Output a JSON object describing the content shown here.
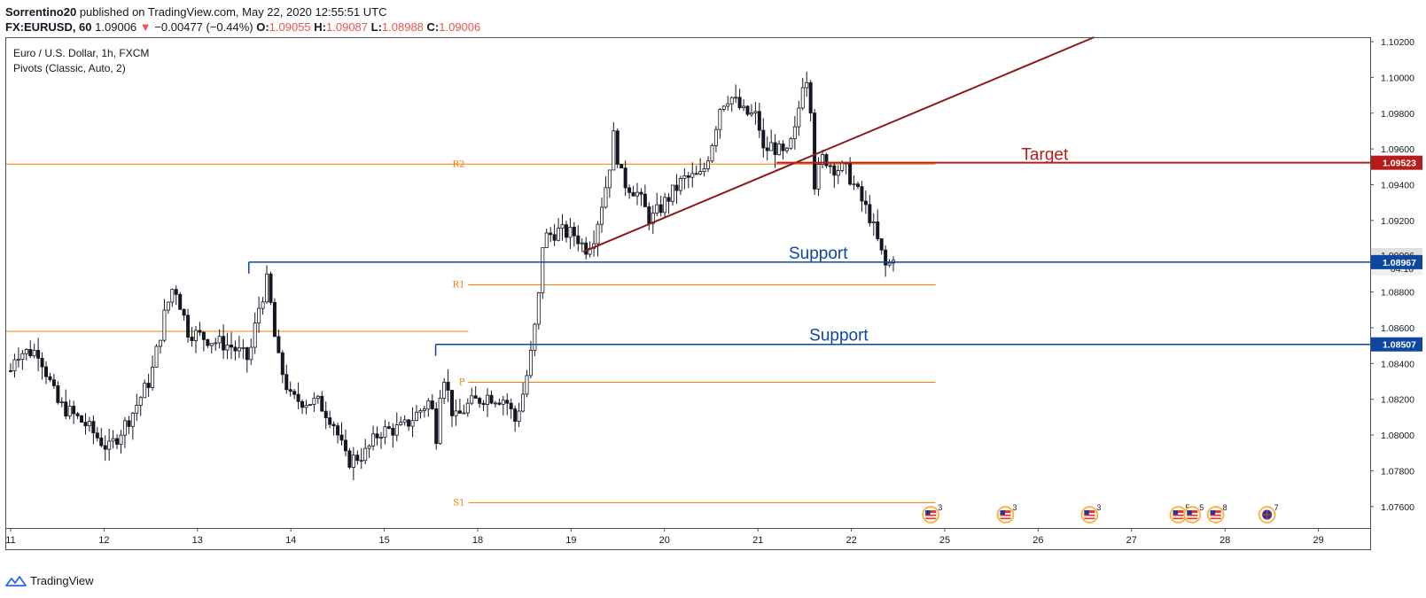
{
  "header": {
    "author": "Sorrentino20",
    "published": "published on TradingView.com, May 22, 2020 12:55:51 UTC",
    "symbol": "FX:EURUSD, 60",
    "last": "1.09006",
    "change_arrow": "▼",
    "change": "−0.00477 (−0.44%)",
    "o_label": "O:",
    "o_val": "1.09055",
    "h_label": "H:",
    "h_val": "1.09087",
    "l_label": "L:",
    "l_val": "1.08988",
    "c_label": "C:",
    "c_val": "1.09006"
  },
  "legend": {
    "title": "Euro / U.S. Dollar, 1h, FXCM",
    "indicator": "Pivots (Classic, Auto, 2)"
  },
  "footer": {
    "brand": "TradingView",
    "logo_icon": "tradingview-logo-icon"
  },
  "colors": {
    "up": "#ffffff",
    "down": "#131722",
    "pivot": "#f57c00",
    "support": "#0d47a1",
    "target": "#b71c1c",
    "trend": "#8b1a1a"
  },
  "chart_data": {
    "type": "candlestick",
    "ylim": [
      1.0748,
      1.1022
    ],
    "y_ticks": [
      "1.10200",
      "1.10000",
      "1.09800",
      "1.09600",
      "1.09400",
      "1.09200",
      "1.09000",
      "1.08800",
      "1.08600",
      "1.08400",
      "1.08200",
      "1.08000",
      "1.07800",
      "1.07600"
    ],
    "x_ticks": [
      {
        "label": "11",
        "day": 0
      },
      {
        "label": "12",
        "day": 1
      },
      {
        "label": "13",
        "day": 2
      },
      {
        "label": "14",
        "day": 3
      },
      {
        "label": "15",
        "day": 4
      },
      {
        "label": "18",
        "day": 5
      },
      {
        "label": "19",
        "day": 6
      },
      {
        "label": "20",
        "day": 7
      },
      {
        "label": "21",
        "day": 8
      },
      {
        "label": "22",
        "day": 9
      },
      {
        "label": "25",
        "day": 10
      },
      {
        "label": "26",
        "day": 11
      },
      {
        "label": "27",
        "day": 12
      },
      {
        "label": "28",
        "day": 13
      },
      {
        "label": "29",
        "day": 14
      }
    ],
    "anchors": [
      [
        0.0,
        1.0836
      ],
      [
        0.05,
        1.0846
      ],
      [
        0.3,
        1.0847
      ],
      [
        0.5,
        1.0818
      ],
      [
        0.8,
        1.0806
      ],
      [
        1.05,
        1.0792
      ],
      [
        1.3,
        1.0812
      ],
      [
        1.5,
        1.0832
      ],
      [
        1.65,
        1.0868
      ],
      [
        1.75,
        1.0885
      ],
      [
        1.9,
        1.0858
      ],
      [
        2.2,
        1.0852
      ],
      [
        2.35,
        1.085
      ],
      [
        2.55,
        1.0842
      ],
      [
        2.65,
        1.087
      ],
      [
        2.75,
        1.0887
      ],
      [
        2.85,
        1.0845
      ],
      [
        3.0,
        1.082
      ],
      [
        3.3,
        1.0818
      ],
      [
        3.45,
        1.0808
      ],
      [
        3.6,
        1.0785
      ],
      [
        3.8,
        1.079
      ],
      [
        3.95,
        1.0802
      ],
      [
        4.2,
        1.0804
      ],
      [
        4.35,
        1.0812
      ],
      [
        4.5,
        1.082
      ],
      [
        4.55,
        1.0796
      ],
      [
        4.62,
        1.0838
      ],
      [
        4.75,
        1.0808
      ],
      [
        4.9,
        1.0817
      ],
      [
        5.1,
        1.0822
      ],
      [
        5.3,
        1.082
      ],
      [
        5.4,
        1.0808
      ],
      [
        5.5,
        1.0826
      ],
      [
        5.58,
        1.0848
      ],
      [
        5.65,
        1.0875
      ],
      [
        5.7,
        1.091
      ],
      [
        5.85,
        1.0914
      ],
      [
        6.05,
        1.0912
      ],
      [
        6.15,
        1.0904
      ],
      [
        6.25,
        1.0912
      ],
      [
        6.4,
        1.0946
      ],
      [
        6.45,
        1.0968
      ],
      [
        6.55,
        1.0942
      ],
      [
        6.7,
        1.0936
      ],
      [
        6.85,
        1.092
      ],
      [
        7.0,
        1.093
      ],
      [
        7.2,
        1.0943
      ],
      [
        7.4,
        1.0945
      ],
      [
        7.5,
        1.0962
      ],
      [
        7.6,
        1.0985
      ],
      [
        7.7,
        1.099
      ],
      [
        7.85,
        1.098
      ],
      [
        8.0,
        1.0978
      ],
      [
        8.05,
        1.0958
      ],
      [
        8.15,
        1.0962
      ],
      [
        8.3,
        1.0955
      ],
      [
        8.4,
        1.097
      ],
      [
        8.48,
        1.0998
      ],
      [
        8.55,
        1.1002
      ],
      [
        8.6,
        1.094
      ],
      [
        8.7,
        1.0956
      ],
      [
        8.8,
        1.095
      ],
      [
        8.95,
        1.0948
      ],
      [
        9.1,
        1.0932
      ],
      [
        9.2,
        1.0922
      ],
      [
        9.3,
        1.0905
      ],
      [
        9.38,
        1.0892
      ],
      [
        9.45,
        1.0901
      ]
    ],
    "last_price": "1.09006",
    "countdown": "04:10",
    "pivot_levels": [
      {
        "name": "R2",
        "value": 1.09515
      },
      {
        "name": "R1",
        "value": 1.0884
      },
      {
        "name": "P",
        "value": 1.08295
      },
      {
        "name": "S1",
        "value": 1.07622
      }
    ],
    "prev_pivot": 1.0858,
    "support_lines": [
      {
        "label": "Support",
        "value": 1.08967,
        "price_label": "1.08967",
        "start_day": 2.55
      },
      {
        "label": "Support",
        "value": 1.08507,
        "price_label": "1.08507",
        "start_day": 4.55
      }
    ],
    "target_line": {
      "label": "Target",
      "value": 1.09523,
      "price_label": "1.09523",
      "start_day": 8.2
    },
    "trendline": {
      "x1": 6.13,
      "y1": 1.09025,
      "x2": 11.6,
      "y2": 1.10225
    },
    "events": [
      {
        "day": 9.85,
        "count": "3",
        "icon": "us-flag-icon"
      },
      {
        "day": 10.65,
        "count": "3",
        "icon": "us-flag-icon"
      },
      {
        "day": 11.55,
        "count": "3",
        "icon": "us-flag-icon"
      },
      {
        "day": 12.5,
        "count": "5",
        "icon": "us-flag-icon"
      },
      {
        "day": 12.65,
        "count": "5",
        "icon": "us-flag-icon"
      },
      {
        "day": 12.9,
        "count": "8",
        "icon": "us-flag-icon"
      },
      {
        "day": 13.45,
        "count": "7",
        "icon": "globe-icon"
      }
    ]
  }
}
